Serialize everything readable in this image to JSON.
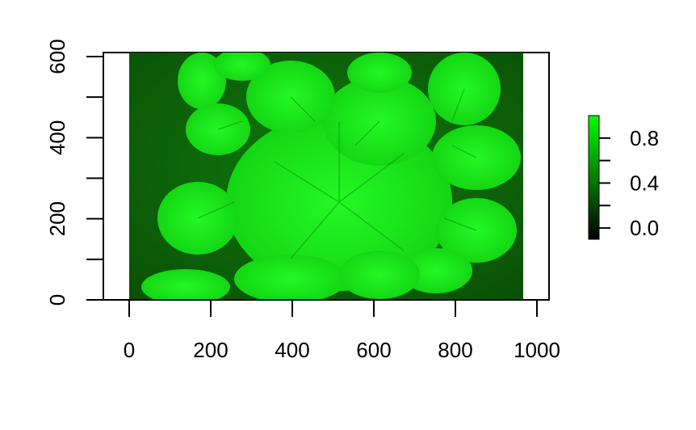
{
  "chart_data": {
    "type": "heatmap",
    "title": "",
    "xlabel": "",
    "ylabel": "",
    "xlim": [
      -60,
      1020
    ],
    "ylim": [
      0,
      610
    ],
    "image_extent": {
      "x": [
        0,
        968
      ],
      "y": [
        0,
        610
      ]
    },
    "x_ticks": [
      0,
      200,
      400,
      600,
      800,
      1000
    ],
    "x_tick_labels": [
      "0",
      "200",
      "400",
      "600",
      "800",
      "1000"
    ],
    "y_ticks": [
      0,
      200,
      400,
      600
    ],
    "y_tick_labels": [
      "0",
      "200",
      "400",
      "600"
    ],
    "colorbar": {
      "range": [
        -0.1,
        1.0
      ],
      "ticks": [
        0.0,
        0.2,
        0.4,
        0.6,
        0.8
      ],
      "labeled_ticks": [
        0.0,
        0.4,
        0.8
      ],
      "tick_labels": [
        "0.0",
        "0.4",
        "0.8"
      ],
      "colors": [
        "#000000",
        "#00ff00"
      ],
      "position": "right"
    },
    "colors": {
      "background": "#0b5e07",
      "plant": "#0de10d",
      "plant_highlight": "#27ff27"
    },
    "content": "green-channel image of potato plant leaves viewed from above"
  }
}
